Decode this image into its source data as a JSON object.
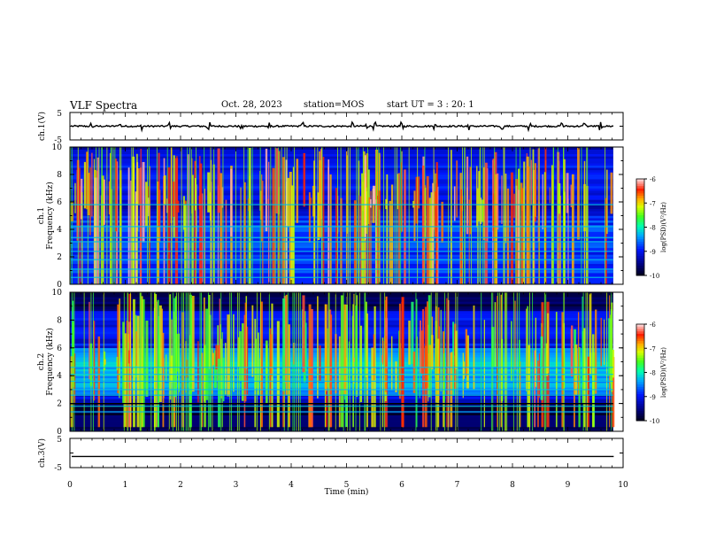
{
  "header": {
    "title": "VLF Spectra",
    "date": "Oct. 28, 2023",
    "station": "station=MOS",
    "start_ut": "start  UT =   3 : 20: 1"
  },
  "chart_data": [
    {
      "type": "line",
      "panel": "ch1-waveform",
      "ylabel": "ch.1(V)",
      "ylim": [
        -5,
        5
      ],
      "yticks": [
        "5",
        "-5"
      ],
      "xlim": [
        0,
        10
      ],
      "note_level": 0,
      "spike_times_min": [
        0.4,
        0.9,
        1.3,
        1.8,
        2.5,
        3.1,
        3.6,
        4.2,
        5.1,
        5.35,
        5.5,
        6.0,
        6.6,
        7.2,
        7.8,
        8.3,
        8.9,
        9.3,
        9.6
      ]
    },
    {
      "type": "heatmap",
      "panel": "ch1-spectrogram",
      "ylabel": "ch.1\nFrequency (kHz)",
      "ylim": [
        0,
        10
      ],
      "yticks": [
        "0",
        "2",
        "4",
        "6",
        "8",
        "10"
      ],
      "xlim": [
        0,
        9.82
      ],
      "colorbar": {
        "label": "log(PSD)(V²/Hz)",
        "range": [
          -10,
          -6
        ],
        "ticks": [
          "-6",
          "-7",
          "-8",
          "-9",
          "-10"
        ]
      },
      "intense_band_khz": [
        6,
        9.5
      ],
      "line_frequencies_khz": [
        0.5,
        1.1,
        1.8,
        2.4,
        3.1,
        3.4,
        4.2,
        5.8
      ]
    },
    {
      "type": "heatmap",
      "panel": "ch2-spectrogram",
      "ylabel": "ch.2\nFrequency (kHz)",
      "ylim": [
        0,
        10
      ],
      "yticks": [
        "0",
        "2",
        "4",
        "6",
        "8",
        "10"
      ],
      "xlim": [
        0,
        9.82
      ],
      "colorbar": {
        "label": "log(PSD)(V²/Hz)",
        "range": [
          -10,
          -6
        ],
        "ticks": [
          "-6",
          "-7",
          "-8",
          "-9",
          "-10"
        ]
      },
      "intense_band_khz": [
        2.5,
        8
      ],
      "line_frequencies_khz": [
        1.4,
        1.8,
        2.6,
        3.0,
        3.6,
        4.1,
        4.6
      ]
    },
    {
      "type": "line",
      "panel": "ch3-waveform",
      "ylabel": "ch.3(V)",
      "ylim": [
        -5,
        5
      ],
      "yticks": [
        "5",
        "-5"
      ],
      "xlim": [
        0,
        10
      ],
      "level": -1.2
    }
  ],
  "x_axis": {
    "label": "Time (min)",
    "ticks": [
      "0",
      "1",
      "2",
      "3",
      "4",
      "5",
      "6",
      "7",
      "8",
      "9",
      "10"
    ]
  },
  "colormap": [
    "#000000",
    "#00008b",
    "#0000ff",
    "#00c8ff",
    "#00ff80",
    "#80ff00",
    "#ffff00",
    "#ff8000",
    "#ff0000",
    "#ffffff"
  ]
}
